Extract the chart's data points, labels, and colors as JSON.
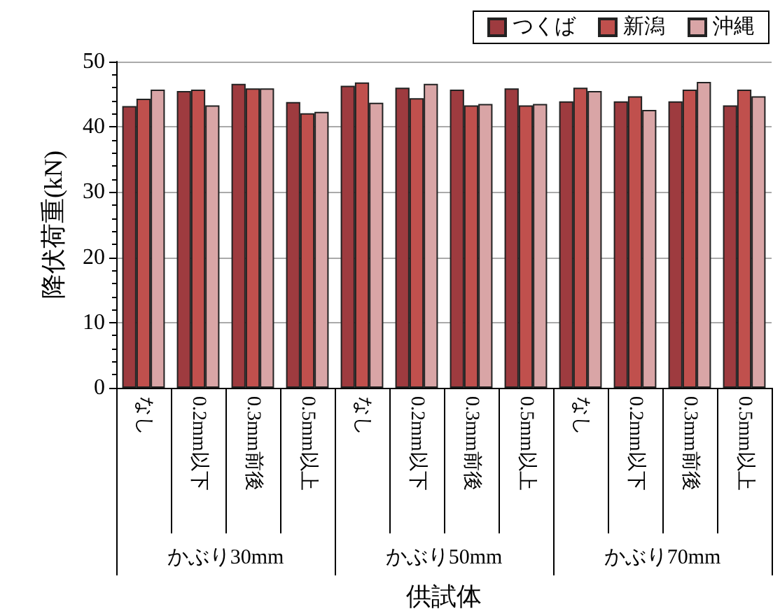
{
  "chart_data": {
    "type": "bar",
    "ylabel": "降伏荷重(kN)",
    "xlabel": "供試体",
    "categories": [
      "なし",
      "0.2mm以下",
      "0.3mm前後",
      "0.5mm以上",
      "なし",
      "0.2mm以下",
      "0.3mm前後",
      "0.5mm以上",
      "なし",
      "0.2mm以下",
      "0.3mm前後",
      "0.5mm以上"
    ],
    "annotations": [
      "かぶり30mm",
      "かぶり50mm",
      "かぶり70mm"
    ],
    "series": [
      {
        "name": "つくば",
        "color": "#9e3b3f",
        "values": [
          43.2,
          45.5,
          46.6,
          43.8,
          46.3,
          46.0,
          45.7,
          45.9,
          43.9,
          43.9,
          43.9,
          43.3
        ]
      },
      {
        "name": "新潟",
        "color": "#c0504d",
        "values": [
          44.3,
          45.7,
          45.9,
          42.1,
          46.8,
          44.4,
          43.3,
          43.3,
          46.0,
          44.7,
          45.7,
          45.7
        ]
      },
      {
        "name": "沖縄",
        "color": "#d9a5a6",
        "values": [
          45.7,
          43.3,
          45.9,
          42.3,
          43.7,
          46.6,
          43.5,
          43.5,
          45.5,
          42.6,
          46.9,
          44.7
        ]
      }
    ],
    "ylim": [
      0,
      50
    ],
    "yticks": [
      0,
      10,
      20,
      30,
      40,
      50
    ],
    "grid": "y",
    "legend": "top right"
  }
}
